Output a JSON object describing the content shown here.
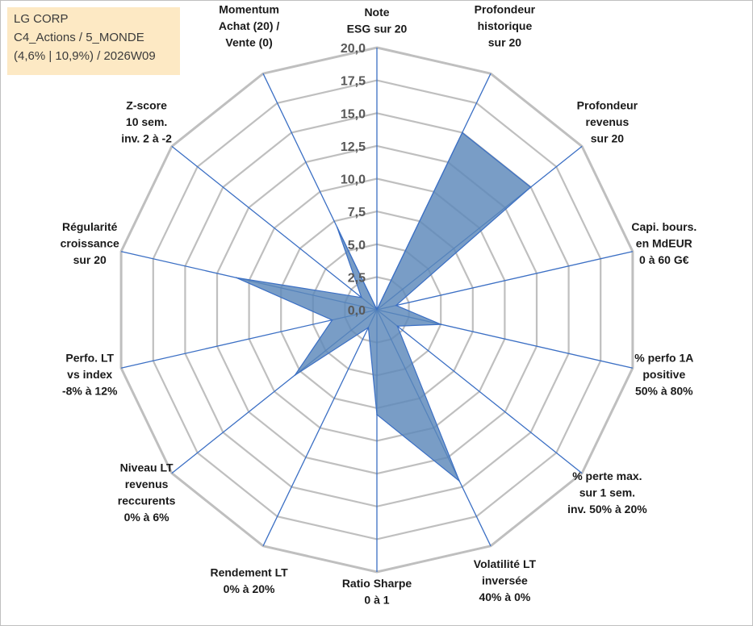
{
  "info": {
    "company": "LG CORP",
    "portfolio": "C4_Actions / 5_MONDE",
    "stats": "(4,6% | 10,9%) / 2026W09"
  },
  "chart_data": {
    "type": "radar",
    "rmin": 0,
    "rmax": 20,
    "ticks": [
      "0,0",
      "2,5",
      "5,0",
      "7,5",
      "10,0",
      "12,5",
      "15,0",
      "17,5",
      "20,0"
    ],
    "tick_values": [
      0,
      2.5,
      5,
      7.5,
      10,
      12.5,
      15,
      17.5,
      20
    ],
    "grid": true,
    "fill_color": "#5b87b9",
    "line_color": "#3b6fc4",
    "grid_color": "#bfbfbf",
    "axes": [
      {
        "label": [
          "Note",
          "ESG sur 20"
        ],
        "value": 0
      },
      {
        "label": [
          "Profondeur",
          "historique",
          "sur 20"
        ],
        "value": 15
      },
      {
        "label": [
          "Profondeur",
          "revenus",
          "sur 20"
        ],
        "value": 15
      },
      {
        "label": [
          "Capi. bours.",
          "en MdEUR",
          "0 à 60 G€"
        ],
        "value": 1.5
      },
      {
        "label": [
          "% perfo 1A",
          "positive",
          "50% à 80%"
        ],
        "value": 5
      },
      {
        "label": [
          "% perte max.",
          "sur 1 sem.",
          "inv. 50% à 20%"
        ],
        "value": 2
      },
      {
        "label": [
          "Volatilité LT",
          "inversée",
          "40% à 0%"
        ],
        "value": 14.5
      },
      {
        "label": [
          "Ratio Sharpe",
          "0 à 1"
        ],
        "value": 8
      },
      {
        "label": [
          "Rendement LT",
          "0% à 20%"
        ],
        "value": 1.5
      },
      {
        "label": [
          "Niveau LT",
          "revenus",
          "reccurents",
          "0% à 6%"
        ],
        "value": 8
      },
      {
        "label": [
          "Perfo. LT",
          "vs index",
          "-8% à 12%"
        ],
        "value": 3.5
      },
      {
        "label": [
          "Régularité",
          "croissance",
          "sur 20"
        ],
        "value": 11
      },
      {
        "label": [
          "Z-score",
          "10 sem.",
          "inv. 2 à -2"
        ],
        "value": 1.5
      },
      {
        "label": [
          "Momentum",
          "Achat (20) /",
          "Vente (0)"
        ],
        "value": 7
      }
    ]
  }
}
